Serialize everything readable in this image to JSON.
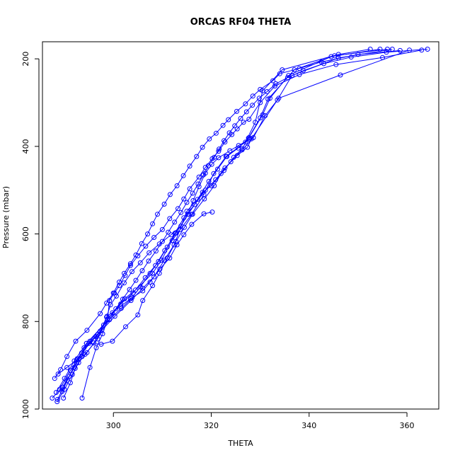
{
  "chart_data": {
    "type": "line",
    "title": "ORCAS RF04 THETA",
    "xlabel": "THETA",
    "ylabel": "Pressure (mbar)",
    "xlim": [
      285.5,
      366.5
    ],
    "ylim": [
      1000,
      161
    ],
    "y_inverted": true,
    "xticks": [
      300,
      320,
      340,
      360
    ],
    "yticks": [
      200,
      400,
      600,
      800,
      1000
    ],
    "grid": false,
    "series_color": "#0000ff",
    "marker": "open-circle",
    "series": [
      {
        "values": [
          [
            287.5,
            975
          ],
          [
            289.6,
            950
          ],
          [
            292.0,
            905
          ],
          [
            294.0,
            860
          ],
          [
            296.5,
            835
          ],
          [
            299.8,
            780
          ],
          [
            302.3,
            748
          ],
          [
            304.5,
            728
          ],
          [
            308.0,
            690
          ],
          [
            309.8,
            660
          ],
          [
            312.0,
            615
          ],
          [
            316.0,
            555
          ],
          [
            318.5,
            510
          ],
          [
            320.5,
            462
          ],
          [
            323.0,
            423
          ],
          [
            327.0,
            390
          ],
          [
            329.0,
            345
          ],
          [
            330.5,
            273
          ],
          [
            334.5,
            225
          ],
          [
            346.0,
            190
          ],
          [
            352.5,
            178
          ]
        ]
      },
      {
        "values": [
          [
            288.6,
            978
          ],
          [
            290.5,
            935
          ],
          [
            292.5,
            895
          ],
          [
            295.2,
            845
          ],
          [
            298.8,
            795
          ],
          [
            301.5,
            760
          ],
          [
            304.0,
            735
          ],
          [
            306.5,
            700
          ],
          [
            308.6,
            672
          ],
          [
            310.5,
            638
          ],
          [
            312.8,
            598
          ],
          [
            315.3,
            555
          ],
          [
            318.2,
            505
          ],
          [
            320.0,
            490
          ],
          [
            322.6,
            455
          ],
          [
            324.6,
            425
          ],
          [
            326.3,
            405
          ],
          [
            327.7,
            380
          ],
          [
            330.5,
            328
          ],
          [
            332.0,
            290
          ],
          [
            335.8,
            238
          ],
          [
            344.5,
            195
          ],
          [
            354.5,
            178
          ]
        ]
      },
      {
        "values": [
          [
            289.0,
            955
          ],
          [
            291.2,
            912
          ],
          [
            293.5,
            872
          ],
          [
            296.8,
            830
          ],
          [
            300.3,
            788
          ],
          [
            303.6,
            752
          ],
          [
            306.0,
            724
          ],
          [
            308.3,
            698
          ],
          [
            310.4,
            660
          ],
          [
            312.4,
            625
          ],
          [
            313.6,
            590
          ],
          [
            315.0,
            548
          ],
          [
            317.2,
            521
          ],
          [
            319.5,
            480
          ],
          [
            321.3,
            452
          ],
          [
            323.2,
            423
          ],
          [
            325.5,
            404
          ],
          [
            327.6,
            381
          ],
          [
            330.0,
            335
          ],
          [
            331.6,
            292
          ],
          [
            337.0,
            225
          ],
          [
            345.2,
            193
          ],
          [
            356.0,
            178
          ]
        ]
      },
      {
        "values": [
          [
            288.3,
            962
          ],
          [
            290.0,
            930
          ],
          [
            292.0,
            890
          ],
          [
            294.5,
            850
          ],
          [
            298.0,
            808
          ],
          [
            301.6,
            770
          ],
          [
            303.8,
            746
          ],
          [
            305.5,
            721
          ],
          [
            307.5,
            690
          ],
          [
            309.2,
            663
          ],
          [
            311.0,
            630
          ],
          [
            312.6,
            598
          ],
          [
            314.4,
            563
          ],
          [
            316.6,
            533
          ],
          [
            318.8,
            500
          ],
          [
            320.9,
            476
          ],
          [
            322.8,
            449
          ],
          [
            325.3,
            421
          ],
          [
            327.4,
            402
          ],
          [
            328.2,
            383
          ],
          [
            333.5,
            294
          ],
          [
            336.5,
            238
          ],
          [
            346.0,
            198
          ],
          [
            357.0,
            178
          ]
        ]
      },
      {
        "values": [
          [
            289.8,
            975
          ],
          [
            291.2,
            940
          ],
          [
            292.2,
            907
          ],
          [
            293.6,
            880
          ],
          [
            294.5,
            850
          ],
          [
            297.5,
            852
          ],
          [
            299.8,
            845
          ],
          [
            302.5,
            812
          ],
          [
            305.0,
            785
          ],
          [
            306.0,
            752
          ],
          [
            308.0,
            718
          ],
          [
            309.4,
            690
          ],
          [
            311.0,
            655
          ],
          [
            312.8,
            617
          ],
          [
            314.5,
            585
          ],
          [
            316.2,
            555
          ],
          [
            318.6,
            520
          ],
          [
            320.6,
            490
          ],
          [
            322.0,
            462
          ],
          [
            324.0,
            435
          ],
          [
            326.3,
            408
          ],
          [
            328.6,
            380
          ],
          [
            331.0,
            330
          ],
          [
            333.8,
            290
          ],
          [
            346.4,
            237
          ],
          [
            360.5,
            180
          ]
        ]
      },
      {
        "values": [
          [
            289.5,
            960
          ],
          [
            291.0,
            925
          ],
          [
            292.6,
            885
          ],
          [
            295.0,
            850
          ],
          [
            297.3,
            822
          ],
          [
            298.7,
            788
          ],
          [
            301.5,
            765
          ],
          [
            303.5,
            748
          ],
          [
            306.0,
            730
          ],
          [
            307.5,
            710
          ],
          [
            309.5,
            680
          ],
          [
            311.5,
            655
          ],
          [
            313.0,
            625
          ],
          [
            314.4,
            602
          ],
          [
            316.0,
            578
          ],
          [
            318.5,
            554
          ],
          [
            320.2,
            550
          ]
        ]
      },
      {
        "values": [
          [
            288.7,
            920
          ],
          [
            290.5,
            905
          ],
          [
            292.5,
            888
          ],
          [
            294.2,
            875
          ],
          [
            296.8,
            840
          ],
          [
            298.6,
            790
          ],
          [
            299.4,
            762
          ],
          [
            300.6,
            742
          ],
          [
            302.2,
            712
          ],
          [
            303.8,
            686
          ],
          [
            305.5,
            666
          ],
          [
            307.3,
            643
          ],
          [
            309.4,
            623
          ],
          [
            311.8,
            602
          ],
          [
            313.8,
            582
          ],
          [
            315.2,
            555
          ],
          [
            316.3,
            524
          ],
          [
            317.5,
            492
          ],
          [
            318.8,
            461
          ],
          [
            320.1,
            441
          ],
          [
            321.5,
            426
          ],
          [
            323.8,
            410
          ],
          [
            325.6,
            398
          ],
          [
            327.8,
            384
          ]
        ]
      },
      {
        "values": [
          [
            293.6,
            975
          ],
          [
            295.2,
            905
          ],
          [
            296.5,
            860
          ],
          [
            297.8,
            828
          ],
          [
            298.8,
            796
          ],
          [
            299.2,
            752
          ],
          [
            300.2,
            735
          ],
          [
            301.2,
            718
          ],
          [
            302.4,
            695
          ],
          [
            303.5,
            672
          ],
          [
            305.0,
            650
          ],
          [
            306.6,
            628
          ],
          [
            308.3,
            608
          ],
          [
            310.0,
            590
          ],
          [
            311.5,
            565
          ],
          [
            313.2,
            542
          ],
          [
            314.4,
            520
          ],
          [
            315.6,
            497
          ],
          [
            317.5,
            470
          ],
          [
            318.8,
            448
          ],
          [
            320.2,
            428
          ],
          [
            321.5,
            411
          ],
          [
            322.8,
            390
          ],
          [
            324.2,
            373
          ],
          [
            325.3,
            360
          ],
          [
            326.6,
            345
          ],
          [
            327.7,
            338
          ],
          [
            330.0,
            300
          ],
          [
            333.0,
            262
          ],
          [
            338.0,
            236
          ],
          [
            345.5,
            213
          ],
          [
            355.0,
            197
          ],
          [
            363.0,
            180
          ]
        ]
      },
      {
        "values": [
          [
            288.0,
            930
          ],
          [
            289.2,
            910
          ],
          [
            290.5,
            880
          ],
          [
            292.3,
            845
          ],
          [
            294.6,
            820
          ],
          [
            297.3,
            782
          ],
          [
            298.6,
            758
          ],
          [
            300.0,
            735
          ],
          [
            301.2,
            710
          ],
          [
            302.2,
            690
          ],
          [
            303.5,
            668
          ],
          [
            304.6,
            648
          ],
          [
            305.8,
            622
          ],
          [
            307.0,
            600
          ],
          [
            308.0,
            577
          ],
          [
            309.0,
            555
          ],
          [
            310.4,
            532
          ],
          [
            311.6,
            510
          ],
          [
            313.0,
            490
          ],
          [
            314.3,
            467
          ],
          [
            315.6,
            445
          ],
          [
            317.0,
            423
          ],
          [
            318.2,
            402
          ],
          [
            319.6,
            383
          ],
          [
            321.0,
            370
          ],
          [
            322.4,
            352
          ],
          [
            323.5,
            339
          ],
          [
            325.2,
            320
          ],
          [
            327.0,
            303
          ],
          [
            328.5,
            285
          ],
          [
            330.0,
            270
          ],
          [
            332.6,
            250
          ],
          [
            334.0,
            234
          ],
          [
            338.0,
            222
          ],
          [
            342.5,
            207
          ],
          [
            350.0,
            190
          ],
          [
            358.6,
            181
          ]
        ]
      },
      {
        "values": [
          [
            288.5,
            983
          ],
          [
            290.0,
            955
          ],
          [
            291.6,
            921
          ],
          [
            292.9,
            894
          ],
          [
            294.6,
            871
          ],
          [
            296.0,
            849
          ],
          [
            297.6,
            820
          ],
          [
            299.2,
            796
          ],
          [
            300.5,
            771
          ],
          [
            301.9,
            749
          ],
          [
            303.3,
            727
          ],
          [
            304.6,
            706
          ],
          [
            305.9,
            684
          ],
          [
            307.2,
            662
          ],
          [
            308.7,
            639
          ],
          [
            310.0,
            617
          ],
          [
            311.2,
            596
          ],
          [
            312.5,
            573
          ],
          [
            313.8,
            551
          ],
          [
            315.0,
            528
          ],
          [
            316.2,
            507
          ],
          [
            317.3,
            486
          ],
          [
            318.4,
            465
          ],
          [
            319.4,
            444
          ],
          [
            320.6,
            425
          ],
          [
            321.6,
            406
          ],
          [
            322.6,
            387
          ],
          [
            323.7,
            369
          ],
          [
            324.8,
            353
          ],
          [
            326.0,
            336
          ],
          [
            327.2,
            321
          ],
          [
            328.4,
            306
          ],
          [
            329.8,
            290
          ],
          [
            331.4,
            275
          ],
          [
            333.2,
            257
          ],
          [
            335.6,
            243
          ],
          [
            338.8,
            227
          ],
          [
            343.0,
            211
          ],
          [
            348.6,
            196
          ],
          [
            355.8,
            185
          ],
          [
            364.2,
            178
          ]
        ]
      }
    ]
  }
}
